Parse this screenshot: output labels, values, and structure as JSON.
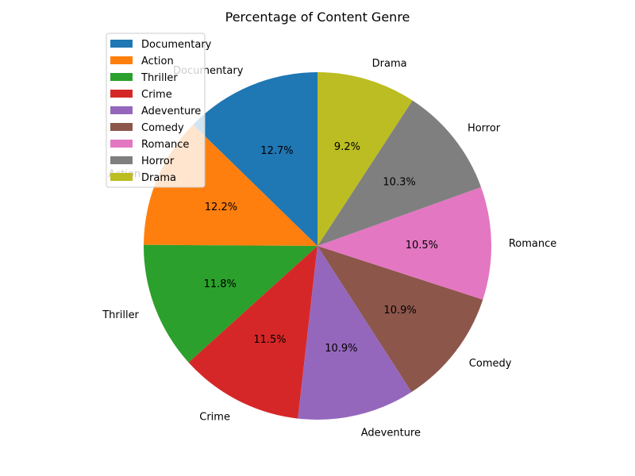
{
  "chart_data": {
    "type": "pie",
    "title": "Percentage of Content Genre",
    "categories": [
      "Documentary",
      "Action",
      "Thriller",
      "Crime",
      "Adeventure",
      "Comedy",
      "Romance",
      "Horror",
      "Drama"
    ],
    "values": [
      12.7,
      12.2,
      11.8,
      11.5,
      10.9,
      10.9,
      10.5,
      10.3,
      9.2
    ],
    "value_labels": [
      "12.7%",
      "12.2%",
      "11.8%",
      "11.5%",
      "10.9%",
      "10.9%",
      "10.5%",
      "10.3%",
      "9.2%"
    ],
    "colors": [
      "#1f77b4",
      "#ff7f0e",
      "#2ca02c",
      "#d62728",
      "#9467bd",
      "#8c564b",
      "#e377c2",
      "#7f7f7f",
      "#bcbd22"
    ],
    "start_angle_deg": 90,
    "direction": "counterclockwise",
    "legend_position": "upper-left"
  }
}
